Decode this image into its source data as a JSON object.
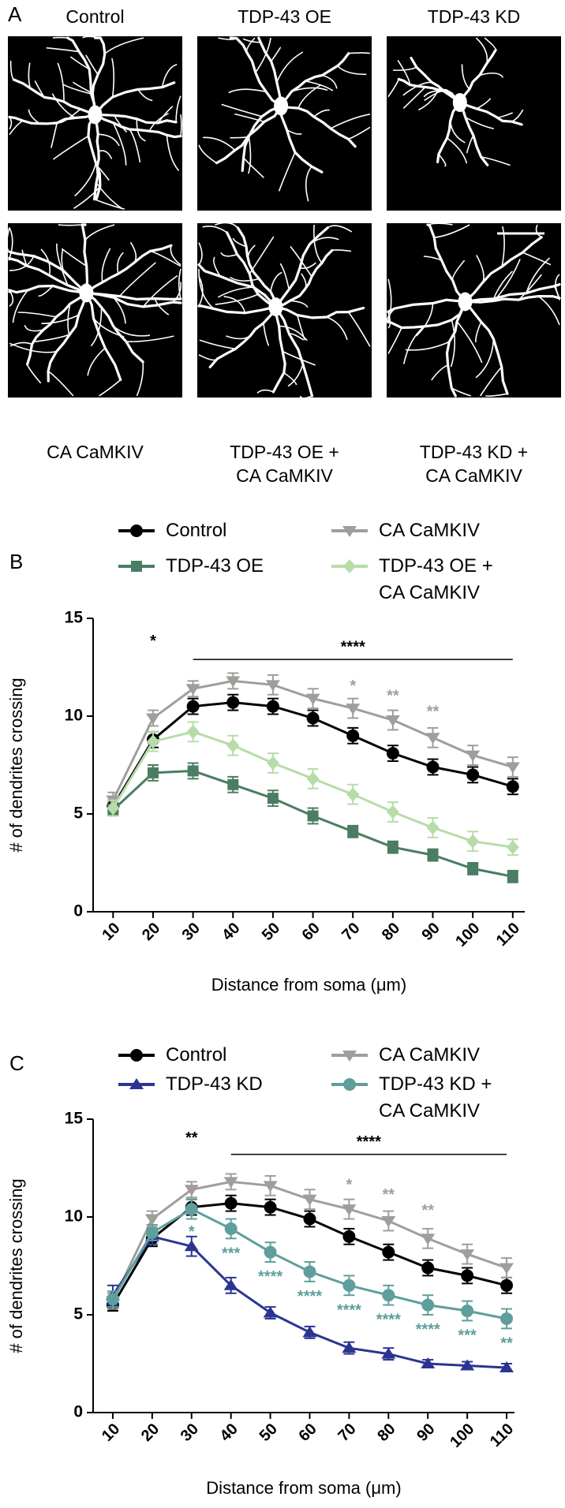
{
  "panel_a": {
    "label": "A",
    "top_labels": [
      "Control",
      "TDP-43 OE",
      "TDP-43 KD"
    ],
    "bottom_labels": [
      "CA CaMKIV",
      "TDP-43 OE + CA CaMKIV",
      "TDP-43 KD + CA CaMKIV"
    ]
  },
  "chart_data": [
    {
      "type": "line",
      "panel_label": "B",
      "x_label": "Distance from soma (μm)",
      "y_label": "# of dendrites crossing",
      "x": [
        10,
        20,
        30,
        40,
        50,
        60,
        70,
        80,
        90,
        100,
        110
      ],
      "xlim": [
        5,
        113
      ],
      "xticks": [
        10,
        20,
        30,
        40,
        50,
        60,
        70,
        80,
        90,
        100,
        110
      ],
      "ylim": [
        0,
        15
      ],
      "yticks": [
        0,
        5,
        10,
        15
      ],
      "series": [
        {
          "name": "Control",
          "color": "#000000",
          "marker": "circle",
          "values": [
            5.4,
            8.8,
            10.5,
            10.7,
            10.5,
            9.9,
            9.0,
            8.1,
            7.4,
            7.0,
            6.4
          ],
          "errors": [
            0.3,
            0.4,
            0.4,
            0.4,
            0.4,
            0.4,
            0.4,
            0.4,
            0.4,
            0.4,
            0.4
          ]
        },
        {
          "name": "CA CaMKIV",
          "color": "#a09e9b",
          "marker": "triangle-down",
          "values": [
            5.7,
            9.9,
            11.4,
            11.8,
            11.6,
            10.9,
            10.4,
            9.8,
            8.9,
            8.0,
            7.4
          ],
          "errors": [
            0.4,
            0.4,
            0.4,
            0.4,
            0.5,
            0.5,
            0.5,
            0.5,
            0.5,
            0.5,
            0.5
          ]
        },
        {
          "name": "TDP-43 OE",
          "color": "#4a7d62",
          "marker": "square",
          "values": [
            5.2,
            7.1,
            7.2,
            6.5,
            5.8,
            4.9,
            4.1,
            3.3,
            2.9,
            2.2,
            1.8
          ],
          "errors": [
            0.3,
            0.4,
            0.4,
            0.4,
            0.4,
            0.4,
            0.3,
            0.3,
            0.3,
            0.3,
            0.3
          ]
        },
        {
          "name": "TDP-43 OE + CA CaMKIV",
          "color": "#b7dcaa",
          "marker": "diamond",
          "values": [
            5.3,
            8.7,
            9.2,
            8.5,
            7.6,
            6.8,
            6.0,
            5.1,
            4.3,
            3.6,
            3.3
          ],
          "errors": [
            0.4,
            0.5,
            0.5,
            0.5,
            0.5,
            0.5,
            0.5,
            0.5,
            0.5,
            0.5,
            0.4
          ]
        }
      ],
      "annotations": [
        {
          "text": "*",
          "x": 20,
          "y": 13.8,
          "color": "#000000"
        },
        {
          "text": "****",
          "x": 70,
          "y": 13.5,
          "color": "#000000"
        },
        {
          "text": "*",
          "x": 70,
          "y": 11.5,
          "color": "#a09e9b"
        },
        {
          "text": "**",
          "x": 80,
          "y": 11.0,
          "color": "#a09e9b"
        },
        {
          "text": "**",
          "x": 90,
          "y": 10.2,
          "color": "#a09e9b"
        }
      ],
      "bracket": {
        "x": [
          30,
          110
        ],
        "y": 12.9
      }
    },
    {
      "type": "line",
      "panel_label": "C",
      "x_label": "Distance from soma (μm)",
      "y_label": "# of dendrites crossing",
      "x": [
        10,
        20,
        30,
        40,
        50,
        60,
        70,
        80,
        90,
        100,
        110
      ],
      "xlim": [
        5,
        112
      ],
      "xticks": [
        10,
        20,
        30,
        40,
        50,
        60,
        70,
        80,
        90,
        100,
        110
      ],
      "ylim": [
        0,
        15
      ],
      "yticks": [
        0,
        5,
        10,
        15
      ],
      "series": [
        {
          "name": "Control",
          "color": "#000000",
          "marker": "circle",
          "values": [
            5.5,
            8.9,
            10.5,
            10.7,
            10.5,
            9.9,
            9.0,
            8.2,
            7.4,
            7.0,
            6.5
          ],
          "errors": [
            0.3,
            0.4,
            0.4,
            0.4,
            0.4,
            0.4,
            0.4,
            0.4,
            0.4,
            0.4,
            0.4
          ]
        },
        {
          "name": "CA CaMKIV",
          "color": "#a09e9b",
          "marker": "triangle-down",
          "values": [
            5.7,
            9.9,
            11.4,
            11.8,
            11.6,
            10.9,
            10.4,
            9.8,
            8.9,
            8.1,
            7.4
          ],
          "errors": [
            0.4,
            0.4,
            0.4,
            0.4,
            0.5,
            0.5,
            0.5,
            0.5,
            0.5,
            0.5,
            0.5
          ]
        },
        {
          "name": "TDP-43 KD",
          "color": "#2b3591",
          "marker": "triangle-up",
          "values": [
            6.0,
            9.0,
            8.5,
            6.5,
            5.1,
            4.1,
            3.3,
            3.0,
            2.5,
            2.4,
            2.3
          ],
          "errors": [
            0.5,
            0.4,
            0.5,
            0.4,
            0.3,
            0.3,
            0.3,
            0.3,
            0.2,
            0.2,
            0.2
          ]
        },
        {
          "name": "TDP-43 KD + CA CaMKIV",
          "color": "#5e9f9c",
          "marker": "circle",
          "values": [
            5.8,
            9.2,
            10.4,
            9.4,
            8.2,
            7.2,
            6.5,
            6.0,
            5.5,
            5.2,
            4.8
          ],
          "errors": [
            0.4,
            0.4,
            0.5,
            0.5,
            0.5,
            0.5,
            0.5,
            0.5,
            0.5,
            0.5,
            0.5
          ]
        }
      ],
      "annotations": [
        {
          "text": "**",
          "x": 30,
          "y": 14.0,
          "color": "#000000"
        },
        {
          "text": "****",
          "x": 75,
          "y": 13.8,
          "color": "#000000"
        },
        {
          "text": "*",
          "x": 70,
          "y": 11.6,
          "color": "#a09e9b"
        },
        {
          "text": "**",
          "x": 80,
          "y": 11.1,
          "color": "#a09e9b"
        },
        {
          "text": "**",
          "x": 90,
          "y": 10.3,
          "color": "#a09e9b"
        },
        {
          "text": "*",
          "x": 30,
          "y": 9.2,
          "color": "#5e9f9c"
        },
        {
          "text": "***",
          "x": 40,
          "y": 8.1,
          "color": "#5e9f9c"
        },
        {
          "text": "****",
          "x": 50,
          "y": 6.9,
          "color": "#5e9f9c"
        },
        {
          "text": "****",
          "x": 60,
          "y": 5.9,
          "color": "#5e9f9c"
        },
        {
          "text": "****",
          "x": 70,
          "y": 5.2,
          "color": "#5e9f9c"
        },
        {
          "text": "****",
          "x": 80,
          "y": 4.7,
          "color": "#5e9f9c"
        },
        {
          "text": "****",
          "x": 90,
          "y": 4.2,
          "color": "#5e9f9c"
        },
        {
          "text": "***",
          "x": 100,
          "y": 3.9,
          "color": "#5e9f9c"
        },
        {
          "text": "**",
          "x": 110,
          "y": 3.5,
          "color": "#5e9f9c"
        }
      ],
      "bracket": {
        "x": [
          40,
          110
        ],
        "y": 13.2
      }
    }
  ]
}
